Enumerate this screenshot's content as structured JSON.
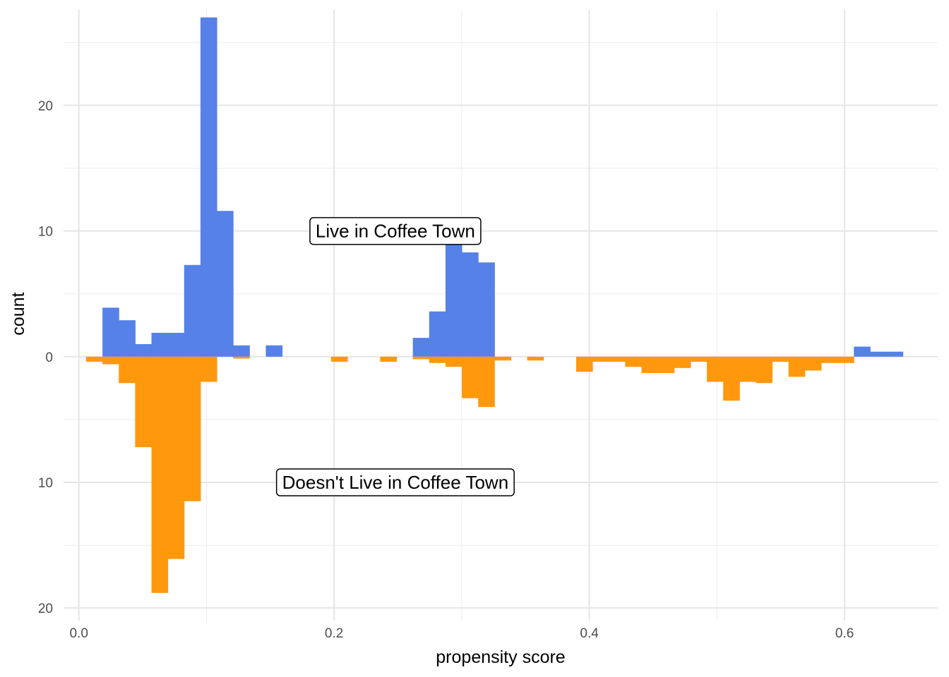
{
  "chart_data": {
    "type": "bar",
    "subtype": "mirrored-histogram",
    "xlabel": "propensity score",
    "ylabel": "count",
    "xlim": [
      -0.012,
      0.673
    ],
    "ylim": [
      -21,
      27.6
    ],
    "x_ticks": [
      {
        "value": 0.0,
        "label": "0.0"
      },
      {
        "value": 0.2,
        "label": "0.2"
      },
      {
        "value": 0.4,
        "label": "0.4"
      },
      {
        "value": 0.6,
        "label": "0.6"
      }
    ],
    "y_ticks": [
      {
        "value": 20,
        "label": "20"
      },
      {
        "value": 10,
        "label": "10"
      },
      {
        "value": 0,
        "label": "0"
      },
      {
        "value": -10,
        "label": "10"
      },
      {
        "value": -20,
        "label": "20"
      }
    ],
    "grid": true,
    "bin_width": 0.0128,
    "series": [
      {
        "color": "#5581E8",
        "direction": "up",
        "bins": [
          {
            "x0": 0.0185,
            "x1": 0.0313,
            "count": 3.9
          },
          {
            "x0": 0.0313,
            "x1": 0.0441,
            "count": 2.9
          },
          {
            "x0": 0.0441,
            "x1": 0.0569,
            "count": 1.0
          },
          {
            "x0": 0.0569,
            "x1": 0.0697,
            "count": 1.9
          },
          {
            "x0": 0.0697,
            "x1": 0.0825,
            "count": 1.9
          },
          {
            "x0": 0.0825,
            "x1": 0.0953,
            "count": 7.3
          },
          {
            "x0": 0.0953,
            "x1": 0.1081,
            "count": 27.0
          },
          {
            "x0": 0.1081,
            "x1": 0.1209,
            "count": 11.6
          },
          {
            "x0": 0.1209,
            "x1": 0.1337,
            "count": 0.9
          },
          {
            "x0": 0.1465,
            "x1": 0.1593,
            "count": 0.9
          },
          {
            "x0": 0.2617,
            "x1": 0.2745,
            "count": 1.5
          },
          {
            "x0": 0.2745,
            "x1": 0.2873,
            "count": 3.6
          },
          {
            "x0": 0.2873,
            "x1": 0.3001,
            "count": 9.0
          },
          {
            "x0": 0.3001,
            "x1": 0.3129,
            "count": 8.3
          },
          {
            "x0": 0.3129,
            "x1": 0.3257,
            "count": 7.5
          },
          {
            "x0": 0.6073,
            "x1": 0.6201,
            "count": 0.8
          },
          {
            "x0": 0.6201,
            "x1": 0.6329,
            "count": 0.4
          },
          {
            "x0": 0.6329,
            "x1": 0.6457,
            "count": 0.4
          }
        ]
      },
      {
        "color": "#FF980C",
        "direction": "down",
        "bins": [
          {
            "x0": 0.0057,
            "x1": 0.0185,
            "count": 0.4
          },
          {
            "x0": 0.0185,
            "x1": 0.0313,
            "count": 0.6
          },
          {
            "x0": 0.0313,
            "x1": 0.0441,
            "count": 2.1
          },
          {
            "x0": 0.0441,
            "x1": 0.0569,
            "count": 7.2
          },
          {
            "x0": 0.0569,
            "x1": 0.0697,
            "count": 18.8
          },
          {
            "x0": 0.0697,
            "x1": 0.0825,
            "count": 16.1
          },
          {
            "x0": 0.0825,
            "x1": 0.0953,
            "count": 11.5
          },
          {
            "x0": 0.0953,
            "x1": 0.1081,
            "count": 2.0
          },
          {
            "x0": 0.1209,
            "x1": 0.1337,
            "count": 0.15
          },
          {
            "x0": 0.1977,
            "x1": 0.2105,
            "count": 0.4
          },
          {
            "x0": 0.2361,
            "x1": 0.2489,
            "count": 0.4
          },
          {
            "x0": 0.2617,
            "x1": 0.2745,
            "count": 0.2
          },
          {
            "x0": 0.2745,
            "x1": 0.2873,
            "count": 0.5
          },
          {
            "x0": 0.2873,
            "x1": 0.3001,
            "count": 0.8
          },
          {
            "x0": 0.3001,
            "x1": 0.3129,
            "count": 3.3
          },
          {
            "x0": 0.3129,
            "x1": 0.3257,
            "count": 4.0
          },
          {
            "x0": 0.3257,
            "x1": 0.3385,
            "count": 0.3
          },
          {
            "x0": 0.3513,
            "x1": 0.3641,
            "count": 0.3
          },
          {
            "x0": 0.3897,
            "x1": 0.4025,
            "count": 1.2
          },
          {
            "x0": 0.4025,
            "x1": 0.4153,
            "count": 0.4
          },
          {
            "x0": 0.4153,
            "x1": 0.4281,
            "count": 0.4
          },
          {
            "x0": 0.4281,
            "x1": 0.4409,
            "count": 0.8
          },
          {
            "x0": 0.4409,
            "x1": 0.4537,
            "count": 1.3
          },
          {
            "x0": 0.4537,
            "x1": 0.4665,
            "count": 1.3
          },
          {
            "x0": 0.4665,
            "x1": 0.4793,
            "count": 0.9
          },
          {
            "x0": 0.4793,
            "x1": 0.4921,
            "count": 0.4
          },
          {
            "x0": 0.4921,
            "x1": 0.5049,
            "count": 2.0
          },
          {
            "x0": 0.5049,
            "x1": 0.5177,
            "count": 3.5
          },
          {
            "x0": 0.5177,
            "x1": 0.5305,
            "count": 2.0
          },
          {
            "x0": 0.5305,
            "x1": 0.5433,
            "count": 2.1
          },
          {
            "x0": 0.5433,
            "x1": 0.5561,
            "count": 0.4
          },
          {
            "x0": 0.5561,
            "x1": 0.5689,
            "count": 1.6
          },
          {
            "x0": 0.5689,
            "x1": 0.5817,
            "count": 1.1
          },
          {
            "x0": 0.5817,
            "x1": 0.5945,
            "count": 0.5
          },
          {
            "x0": 0.5945,
            "x1": 0.6073,
            "count": 0.5
          }
        ]
      }
    ],
    "annotations": [
      {
        "text": "Live in Coffee Town",
        "x": 0.248,
        "y": 10.0
      },
      {
        "text": "Doesn't Live in Coffee Town",
        "x": 0.248,
        "y": -10.0
      }
    ]
  }
}
